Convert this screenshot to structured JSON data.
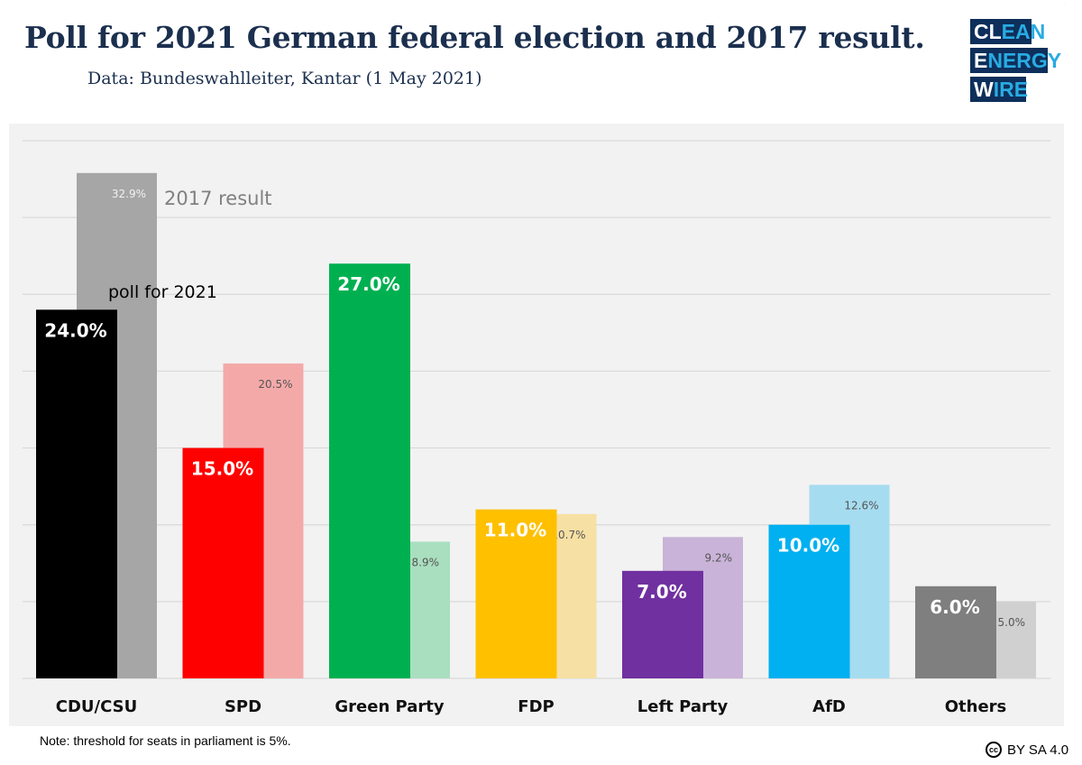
{
  "header": {
    "title": "Poll for 2021 German federal election and 2017 result.",
    "subtitle": "Data: Bundeswahlleiter, Kantar (1 May 2021)"
  },
  "logo": {
    "lines": [
      "CLEAN",
      "ENERGY",
      "WIRE"
    ]
  },
  "chart_data": {
    "type": "bar",
    "title": "",
    "xlabel": "",
    "ylabel": "",
    "ylim": [
      0,
      35
    ],
    "grid": true,
    "categories": [
      "CDU/CSU",
      "SPD",
      "Green Party",
      "FDP",
      "Left Party",
      "AfD",
      "Others"
    ],
    "series": [
      {
        "name": "poll for 2021",
        "values": [
          24.0,
          15.0,
          27.0,
          11.0,
          7.0,
          10.0,
          6.0
        ],
        "colors": [
          "#000000",
          "#ff0000",
          "#00b050",
          "#ffc000",
          "#7030a0",
          "#00b0f0",
          "#7f7f7f"
        ],
        "labels": [
          "24.0%",
          "15.0%",
          "27.0%",
          "11.0%",
          "7.0%",
          "10.0%",
          "6.0%"
        ]
      },
      {
        "name": "2017 result",
        "values": [
          32.9,
          20.5,
          8.9,
          10.7,
          9.2,
          12.6,
          5.0
        ],
        "colors": [
          "#a6a6a6",
          "#f4a9a9",
          "#a9dfbf",
          "#f7e0a3",
          "#c9b3d8",
          "#a6dcf0",
          "#d0d0d0"
        ],
        "labels": [
          "32.9%",
          "20.5%",
          "8.9%",
          "10.7%",
          "9.2%",
          "12.6%",
          "5.0%"
        ]
      }
    ],
    "annotations": [
      "2017 result",
      "poll for 2021"
    ]
  },
  "footer": {
    "note": "Note: threshold for seats in parliament is 5%.",
    "license_icon": "cc",
    "license": "BY SA 4.0"
  }
}
